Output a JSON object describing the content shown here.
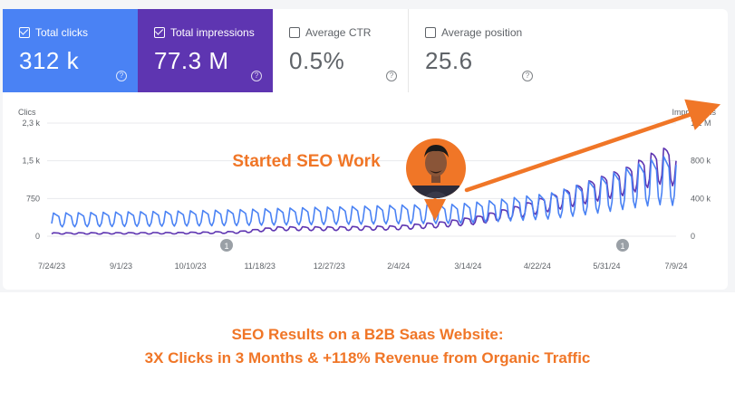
{
  "metrics": [
    {
      "label": "Total clicks",
      "value": "312 k",
      "checked": true
    },
    {
      "label": "Total impressions",
      "value": "77.3 M",
      "checked": true
    },
    {
      "label": "Average CTR",
      "value": "0.5%",
      "checked": false
    },
    {
      "label": "Average position",
      "value": "25.6",
      "checked": false
    }
  ],
  "annotation": {
    "text": "Started SEO Work",
    "marker": "1"
  },
  "colors": {
    "clicks": "#4a82f4",
    "impressions": "#5e35b1",
    "accent": "#f07627"
  },
  "footer": {
    "line1": "SEO Results on a B2B Saas Website:",
    "line2": "3X Clicks in 3 Months & +118% Revenue from Organic Traffic"
  },
  "chart_data": {
    "type": "line",
    "x_ticks": [
      "7/24/23",
      "9/1/23",
      "10/10/23",
      "11/18/23",
      "12/27/23",
      "2/4/24",
      "3/14/24",
      "4/22/24",
      "5/31/24",
      "7/9/24"
    ],
    "left_axis": {
      "label": "Clics",
      "ticks": [
        "0",
        "750",
        "1,5 k",
        "2,3 k"
      ],
      "ylim": [
        0,
        2300
      ]
    },
    "right_axis": {
      "label": "Impressions",
      "ticks": [
        "0",
        "400 k",
        "800 k",
        "1,2 M"
      ],
      "ylim": [
        0,
        1200000
      ]
    },
    "series": [
      {
        "name": "Total clicks",
        "axis": "left",
        "weekly_pattern": [
          0.55,
          1.0,
          0.95,
          0.9,
          0.85,
          0.5,
          0.4
        ],
        "trend": [
          [
            0,
            470
          ],
          [
            0.1,
            490
          ],
          [
            0.2,
            510
          ],
          [
            0.3,
            540
          ],
          [
            0.4,
            580
          ],
          [
            0.5,
            610
          ],
          [
            0.55,
            630
          ],
          [
            0.6,
            640
          ],
          [
            0.65,
            650
          ],
          [
            0.7,
            720
          ],
          [
            0.8,
            880
          ],
          [
            0.87,
            1150
          ],
          [
            0.92,
            1380
          ],
          [
            0.96,
            1560
          ],
          [
            0.99,
            1650
          ],
          [
            1.0,
            1450
          ]
        ]
      },
      {
        "name": "Total impressions",
        "axis": "right",
        "weekly_pattern": [
          0.7,
          1.0,
          0.98,
          0.95,
          0.9,
          0.65,
          0.6
        ],
        "trend": [
          [
            0,
            36000
          ],
          [
            0.2,
            40000
          ],
          [
            0.3,
            52000
          ],
          [
            0.36,
            100000
          ],
          [
            0.45,
            100000
          ],
          [
            0.55,
            110000
          ],
          [
            0.62,
            150000
          ],
          [
            0.68,
            210000
          ],
          [
            0.75,
            330000
          ],
          [
            0.82,
            490000
          ],
          [
            0.87,
            610000
          ],
          [
            0.92,
            730000
          ],
          [
            0.96,
            880000
          ],
          [
            0.99,
            960000
          ],
          [
            1.0,
            800000
          ]
        ]
      }
    ]
  }
}
